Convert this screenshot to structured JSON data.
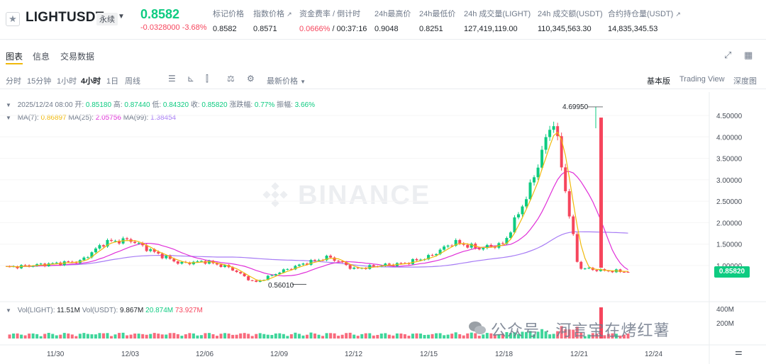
{
  "header": {
    "symbol": "LIGHTUSDT",
    "perp_badge": "永续",
    "last_price": "0.8582",
    "price_change": "-0.0328000 -3.68%",
    "stats": [
      {
        "label": "标记价格",
        "value": "0.8582",
        "ext": false
      },
      {
        "label": "指数价格",
        "value": "0.8571",
        "ext": true
      },
      {
        "label": "资金费率 / 倒计时",
        "value_rate": "0.0666%",
        "value_countdown": "00:37:16",
        "ext": false
      },
      {
        "label": "24h最高价",
        "value": "0.9048",
        "ext": false
      },
      {
        "label": "24h最低价",
        "value": "0.8251",
        "ext": false
      },
      {
        "label": "24h 成交量(LIGHT)",
        "value": "127,419,119.00",
        "ext": false
      },
      {
        "label": "24h 成交额(USDT)",
        "value": "110,345,563.30",
        "ext": false
      },
      {
        "label": "合约持仓量(USDT)",
        "value": "14,835,345.53",
        "ext": true
      }
    ]
  },
  "tabs": [
    "图表",
    "信息",
    "交易数据"
  ],
  "toolbar": {
    "timeframes": [
      "分时",
      "15分钟",
      "1小时",
      "4小时",
      "1日",
      "周线"
    ],
    "active_timeframe": "4小时",
    "price_select": "最新价格",
    "views": [
      "基本版",
      "Trading View",
      "深度图"
    ],
    "active_view": "基本版"
  },
  "info": {
    "datetime": "2025/12/24 08:00",
    "open_label": "开:",
    "open": "0.85180",
    "high_label": "高:",
    "high": "0.87440",
    "low_label": "低:",
    "low": "0.84320",
    "close_label": "收:",
    "close": "0.85820",
    "chg_label": "涨跌幅:",
    "chg": "0.77%",
    "amp_label": "振幅:",
    "amp": "3.66%",
    "ma7_label": "MA(7):",
    "ma7": "0.86897",
    "ma25_label": "MA(25):",
    "ma25": "2.05756",
    "ma99_label": "MA(99):",
    "ma99": "1.38454",
    "vol_light_label": "Vol(LIGHT):",
    "vol_light": "11.51M",
    "vol_usdt_label": "Vol(USDT):",
    "vol_usdt": "9.867M",
    "vol_a": "20.874M",
    "vol_b": "73.927M"
  },
  "chart_labels": {
    "watermark": "BINANCE",
    "high_marker": "4.69950",
    "low_marker": "0.56010",
    "current_price_tag": "0.85820",
    "footer_watermark": "公众号 · 河言宝在烤红薯"
  },
  "colors": {
    "up": "#0ecb81",
    "down": "#f6465d",
    "ma7": "#f0b90b",
    "ma25": "#e02fd8",
    "ma99": "#a77cf5",
    "accent": "#f0b90b"
  },
  "chart_data": {
    "type": "candlestick",
    "interval": "4h",
    "y_axis_ticks": [
      "4.50000",
      "4.00000",
      "3.50000",
      "3.00000",
      "2.50000",
      "2.00000",
      "1.50000",
      "1.00000"
    ],
    "ylim": [
      0.55,
      4.75
    ],
    "vol_axis_ticks": [
      "400M",
      "200M"
    ],
    "x_axis_ticks": [
      "11/30",
      "12/03",
      "12/06",
      "12/09",
      "12/12",
      "12/15",
      "12/18",
      "12/21",
      "12/24"
    ],
    "series": [
      {
        "name": "MA(7)",
        "last": 0.86897
      },
      {
        "name": "MA(25)",
        "last": 2.05756
      },
      {
        "name": "MA(99)",
        "last": 1.38454
      }
    ],
    "key_points": {
      "high": 4.6995,
      "high_date": "12/21",
      "low": 0.5601,
      "low_date": "12/09",
      "last_close": 0.8582
    },
    "price_path": [
      [
        "11/28",
        0.96
      ],
      [
        "11/30",
        1.0
      ],
      [
        "12/01",
        1.05
      ],
      [
        "12/02",
        1.1
      ],
      [
        "12/03",
        1.55
      ],
      [
        "12/04",
        1.6
      ],
      [
        "12/05",
        1.3
      ],
      [
        "12/06",
        1.05
      ],
      [
        "12/07",
        1.1
      ],
      [
        "12/08",
        0.95
      ],
      [
        "12/09",
        0.6
      ],
      [
        "12/10",
        0.85
      ],
      [
        "12/11",
        1.05
      ],
      [
        "12/12",
        1.2
      ],
      [
        "12/13",
        0.92
      ],
      [
        "12/14",
        1.0
      ],
      [
        "12/15",
        1.05
      ],
      [
        "12/16",
        1.2
      ],
      [
        "12/17",
        1.55
      ],
      [
        "12/18",
        1.4
      ],
      [
        "12/19",
        1.5
      ],
      [
        "12/20",
        2.7
      ],
      [
        "12/21",
        4.45
      ],
      [
        "12/22",
        0.95
      ],
      [
        "12/23",
        0.88
      ],
      [
        "12/24",
        0.858
      ]
    ]
  }
}
